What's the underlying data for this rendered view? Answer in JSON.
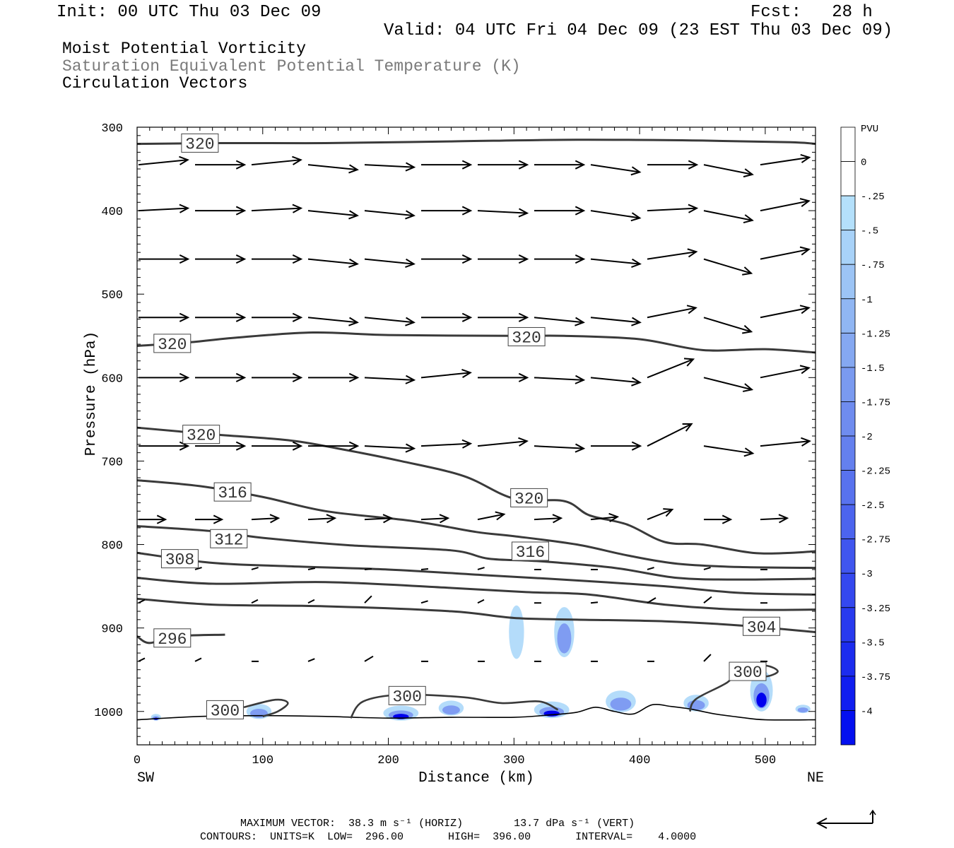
{
  "header": {
    "init": "Init: 00 UTC Thu 03 Dec 09",
    "fcst": "Fcst:   28 h",
    "valid": "Valid: 04 UTC Fri 04 Dec 09 (23 EST Thu 03 Dec 09)"
  },
  "fields": [
    "Moist Potential Vorticity",
    "Saturation Equivalent Potential Temperature (K)",
    "Circulation Vectors"
  ],
  "footer": {
    "line1": "MAXIMUM VECTOR:  38.3 m s⁻¹ (HORIZ)        13.7 dPa s⁻¹ (VERT)",
    "line2": "CONTOURS:  UNITS=K  LOW=  296.00       HIGH=  396.00       INTERVAL=    4.0000"
  },
  "colors": {
    "contour": "#3a3a3a",
    "vector": "#000000",
    "pv_light": "#b4dcfa",
    "pv_dark": "#0000ee"
  },
  "chart_data": {
    "type": "cross-section",
    "xlabel": "Distance (km)",
    "ylabel": "Pressure (hPa)",
    "xlim": [
      0,
      540
    ],
    "ylim": [
      1040,
      300
    ],
    "xticks": [
      0,
      100,
      200,
      300,
      400,
      500
    ],
    "yticks": [
      300,
      400,
      500,
      600,
      700,
      800,
      900,
      1000
    ],
    "end_labels": {
      "left": "SW",
      "right": "NE"
    },
    "colorbar": {
      "title": "PVU",
      "labels": [
        "0",
        "-.25",
        "-.5",
        "-.75",
        "-1",
        "-1.25",
        "-1.5",
        "-1.75",
        "-2",
        "-2.25",
        "-2.5",
        "-2.75",
        "-3",
        "-3.25",
        "-3.5",
        "-3.75",
        "-4"
      ],
      "colors": [
        "#ffffff",
        "#ffffff",
        "#b4e0fb",
        "#a8d2f8",
        "#9cc4f5",
        "#90b6f3",
        "#85a8f1",
        "#7a9af0",
        "#6f8cef",
        "#6480ee",
        "#5872ee",
        "#4c64ee",
        "#4056ef",
        "#3448ef",
        "#283aef",
        "#1c2cef",
        "#101ef0",
        "#0410f0"
      ]
    },
    "contour_labels": [
      {
        "value": "320",
        "x": 50,
        "p": 319
      },
      {
        "value": "320",
        "x": 28,
        "p": 559
      },
      {
        "value": "320",
        "x": 310,
        "p": 551
      },
      {
        "value": "320",
        "x": 51,
        "p": 668
      },
      {
        "value": "320",
        "x": 312,
        "p": 744
      },
      {
        "value": "316",
        "x": 76,
        "p": 737
      },
      {
        "value": "316",
        "x": 313,
        "p": 808
      },
      {
        "value": "312",
        "x": 73,
        "p": 793
      },
      {
        "value": "308",
        "x": 34,
        "p": 817
      },
      {
        "value": "304",
        "x": 497,
        "p": 898
      },
      {
        "value": "296",
        "x": 28,
        "p": 912
      },
      {
        "value": "300",
        "x": 70,
        "p": 998
      },
      {
        "value": "300",
        "x": 215,
        "p": 981
      },
      {
        "value": "300",
        "x": 486,
        "p": 952
      }
    ],
    "contours": [
      {
        "value": 320,
        "points": [
          [
            0,
            320
          ],
          [
            60,
            319
          ],
          [
            150,
            319
          ],
          [
            250,
            317
          ],
          [
            350,
            315
          ],
          [
            450,
            316
          ],
          [
            520,
            318
          ],
          [
            540,
            320
          ]
        ]
      },
      {
        "value": 320,
        "points": [
          [
            0,
            562
          ],
          [
            40,
            558
          ],
          [
            80,
            552
          ],
          [
            140,
            546
          ],
          [
            200,
            549
          ],
          [
            300,
            550
          ],
          [
            340,
            550
          ],
          [
            400,
            554
          ],
          [
            450,
            567
          ],
          [
            500,
            566
          ],
          [
            540,
            570
          ]
        ]
      },
      {
        "value": 320,
        "points": [
          [
            0,
            660
          ],
          [
            60,
            668
          ],
          [
            120,
            675
          ],
          [
            160,
            685
          ],
          [
            210,
            700
          ],
          [
            260,
            718
          ],
          [
            300,
            745
          ],
          [
            340,
            748
          ],
          [
            360,
            765
          ],
          [
            390,
            776
          ],
          [
            420,
            797
          ],
          [
            450,
            800
          ],
          [
            490,
            810
          ],
          [
            520,
            810
          ],
          [
            540,
            808
          ]
        ]
      },
      {
        "value": 316,
        "points": [
          [
            0,
            723
          ],
          [
            50,
            730
          ],
          [
            100,
            743
          ],
          [
            150,
            760
          ],
          [
            220,
            772
          ],
          [
            270,
            785
          ],
          [
            300,
            790
          ],
          [
            350,
            800
          ],
          [
            390,
            813
          ],
          [
            430,
            823
          ],
          [
            480,
            827
          ],
          [
            540,
            828
          ]
        ]
      },
      {
        "value": 312,
        "points": [
          [
            0,
            778
          ],
          [
            60,
            784
          ],
          [
            100,
            792
          ],
          [
            170,
            801
          ],
          [
            250,
            807
          ],
          [
            280,
            817
          ],
          [
            320,
            820
          ],
          [
            380,
            828
          ],
          [
            430,
            840
          ],
          [
            480,
            842
          ],
          [
            540,
            841
          ]
        ]
      },
      {
        "value": 308,
        "points": [
          [
            0,
            810
          ],
          [
            60,
            822
          ],
          [
            120,
            826
          ],
          [
            200,
            830
          ],
          [
            280,
            837
          ],
          [
            350,
            843
          ],
          [
            420,
            850
          ],
          [
            480,
            858
          ],
          [
            540,
            860
          ]
        ]
      },
      {
        "value": 304,
        "points": [
          [
            0,
            840
          ],
          [
            60,
            847
          ],
          [
            150,
            845
          ],
          [
            250,
            852
          ],
          [
            310,
            857
          ],
          [
            360,
            860
          ],
          [
            420,
            872
          ],
          [
            480,
            878
          ],
          [
            540,
            878
          ]
        ]
      },
      {
        "value": 300,
        "points": [
          [
            0,
            865
          ],
          [
            60,
            872
          ],
          [
            150,
            874
          ],
          [
            250,
            880
          ],
          [
            300,
            888
          ],
          [
            350,
            890
          ],
          [
            420,
            892
          ],
          [
            480,
            897
          ],
          [
            540,
            905
          ]
        ]
      },
      {
        "value": 296,
        "points": [
          [
            0,
            910
          ],
          [
            10,
            918
          ],
          [
            30,
            910
          ],
          [
            70,
            908
          ]
        ]
      }
    ],
    "vectors": [
      {
        "p": 345,
        "x": [
          0,
          45,
          90,
          135,
          180,
          225,
          270,
          315,
          360,
          405,
          450,
          495
        ],
        "dir": [
          -0.1,
          0,
          -0.1,
          0.1,
          0.05,
          0,
          0,
          0,
          0.15,
          0,
          0.2,
          -0.15
        ]
      },
      {
        "p": 400,
        "x": [
          0,
          45,
          90,
          135,
          180,
          225,
          270,
          315,
          360,
          405,
          450,
          495
        ],
        "dir": [
          -0.05,
          0,
          -0.05,
          0.1,
          0.1,
          0,
          0.05,
          0,
          0.15,
          -0.05,
          0.2,
          -0.2
        ]
      },
      {
        "p": 458,
        "x": [
          0,
          45,
          90,
          135,
          180,
          225,
          270,
          315,
          360,
          405,
          450,
          495
        ],
        "dir": [
          0,
          0,
          0,
          0.1,
          0.1,
          0,
          0,
          0,
          0.1,
          -0.15,
          0.3,
          -0.2
        ]
      },
      {
        "p": 528,
        "x": [
          0,
          45,
          90,
          135,
          180,
          225,
          270,
          315,
          360,
          405,
          450,
          495
        ],
        "dir": [
          0,
          0,
          0,
          0.1,
          0.1,
          0,
          0,
          0.1,
          0.1,
          -0.2,
          0.3,
          -0.2
        ]
      },
      {
        "p": 600,
        "x": [
          0,
          45,
          90,
          135,
          180,
          225,
          270,
          315,
          360,
          405,
          450,
          495
        ],
        "dir": [
          0,
          0,
          0,
          0,
          0.05,
          -0.1,
          0,
          0.05,
          0.1,
          -0.4,
          0.25,
          -0.2
        ]
      },
      {
        "p": 682,
        "x": [
          0,
          45,
          90,
          135,
          180,
          225,
          270,
          315,
          360,
          405,
          450,
          495
        ],
        "dir": [
          0,
          0,
          0,
          0,
          0.05,
          -0.05,
          -0.1,
          0.05,
          0,
          -0.5,
          0.15,
          -0.1
        ]
      },
      {
        "p": 770,
        "x": [
          0,
          45,
          90,
          135,
          180,
          225,
          270,
          315,
          360,
          405,
          450,
          495
        ],
        "dir": [
          0,
          0,
          -0.05,
          -0.05,
          -0.05,
          -0.05,
          -0.2,
          -0.05,
          -0.1,
          -0.4,
          0,
          -0.05
        ]
      },
      {
        "p": 830,
        "x": [
          45,
          90,
          135,
          180,
          225,
          270,
          315,
          360,
          405,
          450,
          495
        ],
        "dir": [
          -0.3,
          -0.3,
          -0.2,
          -0.1,
          -0.1,
          -0.3,
          0,
          0,
          -0.3,
          -0.3,
          0
        ]
      },
      {
        "p": 870,
        "x": [
          0,
          90,
          135,
          180,
          225,
          270,
          315,
          360,
          405,
          450,
          495
        ],
        "dir": [
          -0.5,
          -0.5,
          -0.5,
          -1,
          -0.3,
          -0.5,
          0,
          -0.1,
          -0.6,
          -0.8,
          0
        ]
      },
      {
        "p": 940,
        "x": [
          0,
          45,
          90,
          135,
          180,
          225,
          270,
          315,
          360,
          405,
          450,
          495
        ],
        "dir": [
          -0.5,
          -0.5,
          0,
          -0.4,
          -0.6,
          0,
          0,
          0,
          0,
          0,
          -1,
          0
        ]
      }
    ],
    "pv_patches": [
      {
        "x": 302,
        "p": 905,
        "w": 6,
        "h": 32,
        "level": 0.2
      },
      {
        "x": 340,
        "p": 905,
        "w": 8,
        "h": 30,
        "level": 0.3
      },
      {
        "x": 97,
        "p": 1000,
        "w": 10,
        "h": 9,
        "level": 0.3
      },
      {
        "x": 210,
        "p": 1002,
        "w": 14,
        "h": 9,
        "level": 0.8
      },
      {
        "x": 250,
        "p": 996,
        "w": 10,
        "h": 9,
        "level": 0.3
      },
      {
        "x": 330,
        "p": 998,
        "w": 14,
        "h": 10,
        "level": 0.9
      },
      {
        "x": 385,
        "p": 988,
        "w": 12,
        "h": 13,
        "level": 0.6
      },
      {
        "x": 445,
        "p": 990,
        "w": 10,
        "h": 10,
        "level": 0.4
      },
      {
        "x": 497,
        "p": 975,
        "w": 9,
        "h": 25,
        "level": 0.95
      },
      {
        "x": 530,
        "p": 997,
        "w": 6,
        "h": 5,
        "level": 0.3
      },
      {
        "x": 15,
        "p": 1007,
        "w": 4,
        "h": 4,
        "level": 0.8
      }
    ],
    "terrain": [
      [
        0,
        1010
      ],
      [
        50,
        1006
      ],
      [
        100,
        1005
      ],
      [
        150,
        1006
      ],
      [
        200,
        1008
      ],
      [
        250,
        1007
      ],
      [
        300,
        1007
      ],
      [
        330,
        1004
      ],
      [
        350,
        1001
      ],
      [
        365,
        995
      ],
      [
        380,
        1000
      ],
      [
        395,
        1003
      ],
      [
        410,
        992
      ],
      [
        425,
        994
      ],
      [
        440,
        997
      ],
      [
        460,
        1003
      ],
      [
        480,
        1007
      ],
      [
        500,
        1010
      ],
      [
        540,
        1010
      ]
    ],
    "legend_vector": {
      "horiz": "38.3",
      "vert": "13.7"
    }
  }
}
